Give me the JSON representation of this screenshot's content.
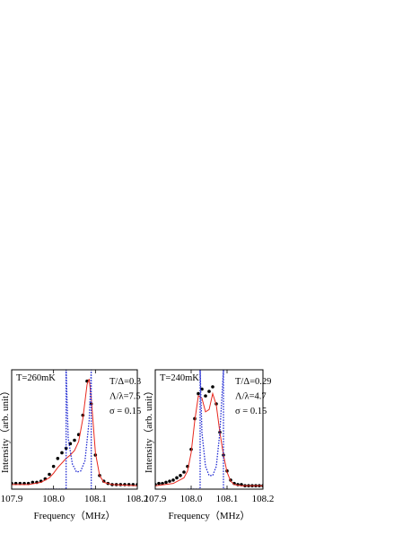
{
  "chart_data": [
    {
      "type": "line",
      "xlabel": "Frequency（MHz）",
      "ylabel": "Intensity（arb. unit）",
      "annotations": [
        "T=260mK",
        "T/Δ=0.3",
        "Λ/λ=7.5",
        "σ = 0.15"
      ],
      "xlim": [
        107.9,
        108.2
      ],
      "xticks": [
        107.9,
        {
          "value": 108,
          "label": "108.0"
        },
        108.1,
        108.2
      ],
      "ylim": [
        0,
        1.05
      ],
      "series": [
        {
          "style": "dots",
          "color": "#000000",
          "x": [
            107.9,
            107.91,
            107.92,
            107.93,
            107.94,
            107.95,
            107.96,
            107.97,
            107.98,
            107.99,
            108.0,
            108.01,
            108.02,
            108.03,
            108.04,
            108.05,
            108.06,
            108.07,
            108.08,
            108.09,
            108.1,
            108.11,
            108.12,
            108.13,
            108.14,
            108.15,
            108.16,
            108.17,
            108.18,
            108.19,
            108.2
          ],
          "values": [
            0.05,
            0.05,
            0.05,
            0.05,
            0.05,
            0.06,
            0.06,
            0.07,
            0.09,
            0.13,
            0.2,
            0.27,
            0.32,
            0.36,
            0.4,
            0.43,
            0.48,
            0.65,
            0.95,
            0.75,
            0.3,
            0.12,
            0.07,
            0.05,
            0.04,
            0.04,
            0.04,
            0.04,
            0.04,
            0.04,
            0.04
          ]
        },
        {
          "style": "solid",
          "color": "#e8281e",
          "x": [
            107.9,
            107.94,
            107.97,
            107.99,
            108.0,
            108.01,
            108.02,
            108.03,
            108.04,
            108.05,
            108.06,
            108.07,
            108.08,
            108.085,
            108.09,
            108.1,
            108.11,
            108.12,
            108.14,
            108.2
          ],
          "values": [
            0.04,
            0.04,
            0.06,
            0.1,
            0.14,
            0.19,
            0.23,
            0.27,
            0.3,
            0.34,
            0.42,
            0.62,
            0.92,
            0.97,
            0.8,
            0.32,
            0.12,
            0.06,
            0.04,
            0.03
          ]
        },
        {
          "style": "dotted",
          "color": "#1e28d2",
          "x": [
            107.98,
            108.03,
            108.03,
            108.035,
            108.045,
            108.055,
            108.065,
            108.075,
            108.085,
            108.09,
            108.09,
            108.1
          ],
          "values": [
            0,
            0,
            1.05,
            0.45,
            0.22,
            0.15,
            0.16,
            0.25,
            0.6,
            1.05,
            0,
            0
          ]
        }
      ]
    },
    {
      "type": "line",
      "xlabel": "Frequency（MHz）",
      "ylabel": "Intensity（arb. unit）",
      "annotations": [
        "T=240mK",
        "T/Δ=0.29",
        "Λ/λ=4.7",
        "σ = 0.15"
      ],
      "xlim": [
        107.9,
        108.2
      ],
      "xticks": [
        107.9,
        {
          "value": 108,
          "label": "108.0"
        },
        108.1,
        108.2
      ],
      "ylim": [
        0,
        1.05
      ],
      "series": [
        {
          "style": "dots",
          "color": "#000000",
          "x": [
            107.9,
            107.91,
            107.92,
            107.93,
            107.94,
            107.95,
            107.96,
            107.97,
            107.98,
            107.99,
            108.0,
            108.01,
            108.02,
            108.03,
            108.04,
            108.05,
            108.06,
            108.07,
            108.08,
            108.09,
            108.1,
            108.11,
            108.12,
            108.13,
            108.14,
            108.15,
            108.16,
            108.17,
            108.18,
            108.19,
            108.2
          ],
          "values": [
            0.04,
            0.05,
            0.05,
            0.06,
            0.07,
            0.08,
            0.1,
            0.12,
            0.15,
            0.2,
            0.35,
            0.62,
            0.84,
            0.88,
            0.82,
            0.86,
            0.9,
            0.75,
            0.5,
            0.3,
            0.16,
            0.08,
            0.05,
            0.04,
            0.04,
            0.03,
            0.03,
            0.03,
            0.03,
            0.03,
            0.03
          ]
        },
        {
          "style": "solid",
          "color": "#e8281e",
          "x": [
            107.9,
            107.95,
            107.98,
            107.99,
            108.0,
            108.01,
            108.02,
            108.03,
            108.04,
            108.05,
            108.06,
            108.07,
            108.08,
            108.09,
            108.1,
            108.11,
            108.12,
            108.14,
            108.2
          ],
          "values": [
            0.03,
            0.05,
            0.1,
            0.16,
            0.32,
            0.6,
            0.82,
            0.8,
            0.68,
            0.7,
            0.84,
            0.74,
            0.5,
            0.3,
            0.15,
            0.07,
            0.04,
            0.03,
            0.03
          ]
        },
        {
          "style": "dotted",
          "color": "#1e28d2",
          "x": [
            107.99,
            108.025,
            108.025,
            108.03,
            108.04,
            108.05,
            108.06,
            108.07,
            108.08,
            108.09,
            108.09,
            108.1
          ],
          "values": [
            0,
            0,
            1.05,
            0.5,
            0.2,
            0.12,
            0.12,
            0.2,
            0.5,
            1.05,
            0,
            0
          ]
        }
      ]
    }
  ]
}
